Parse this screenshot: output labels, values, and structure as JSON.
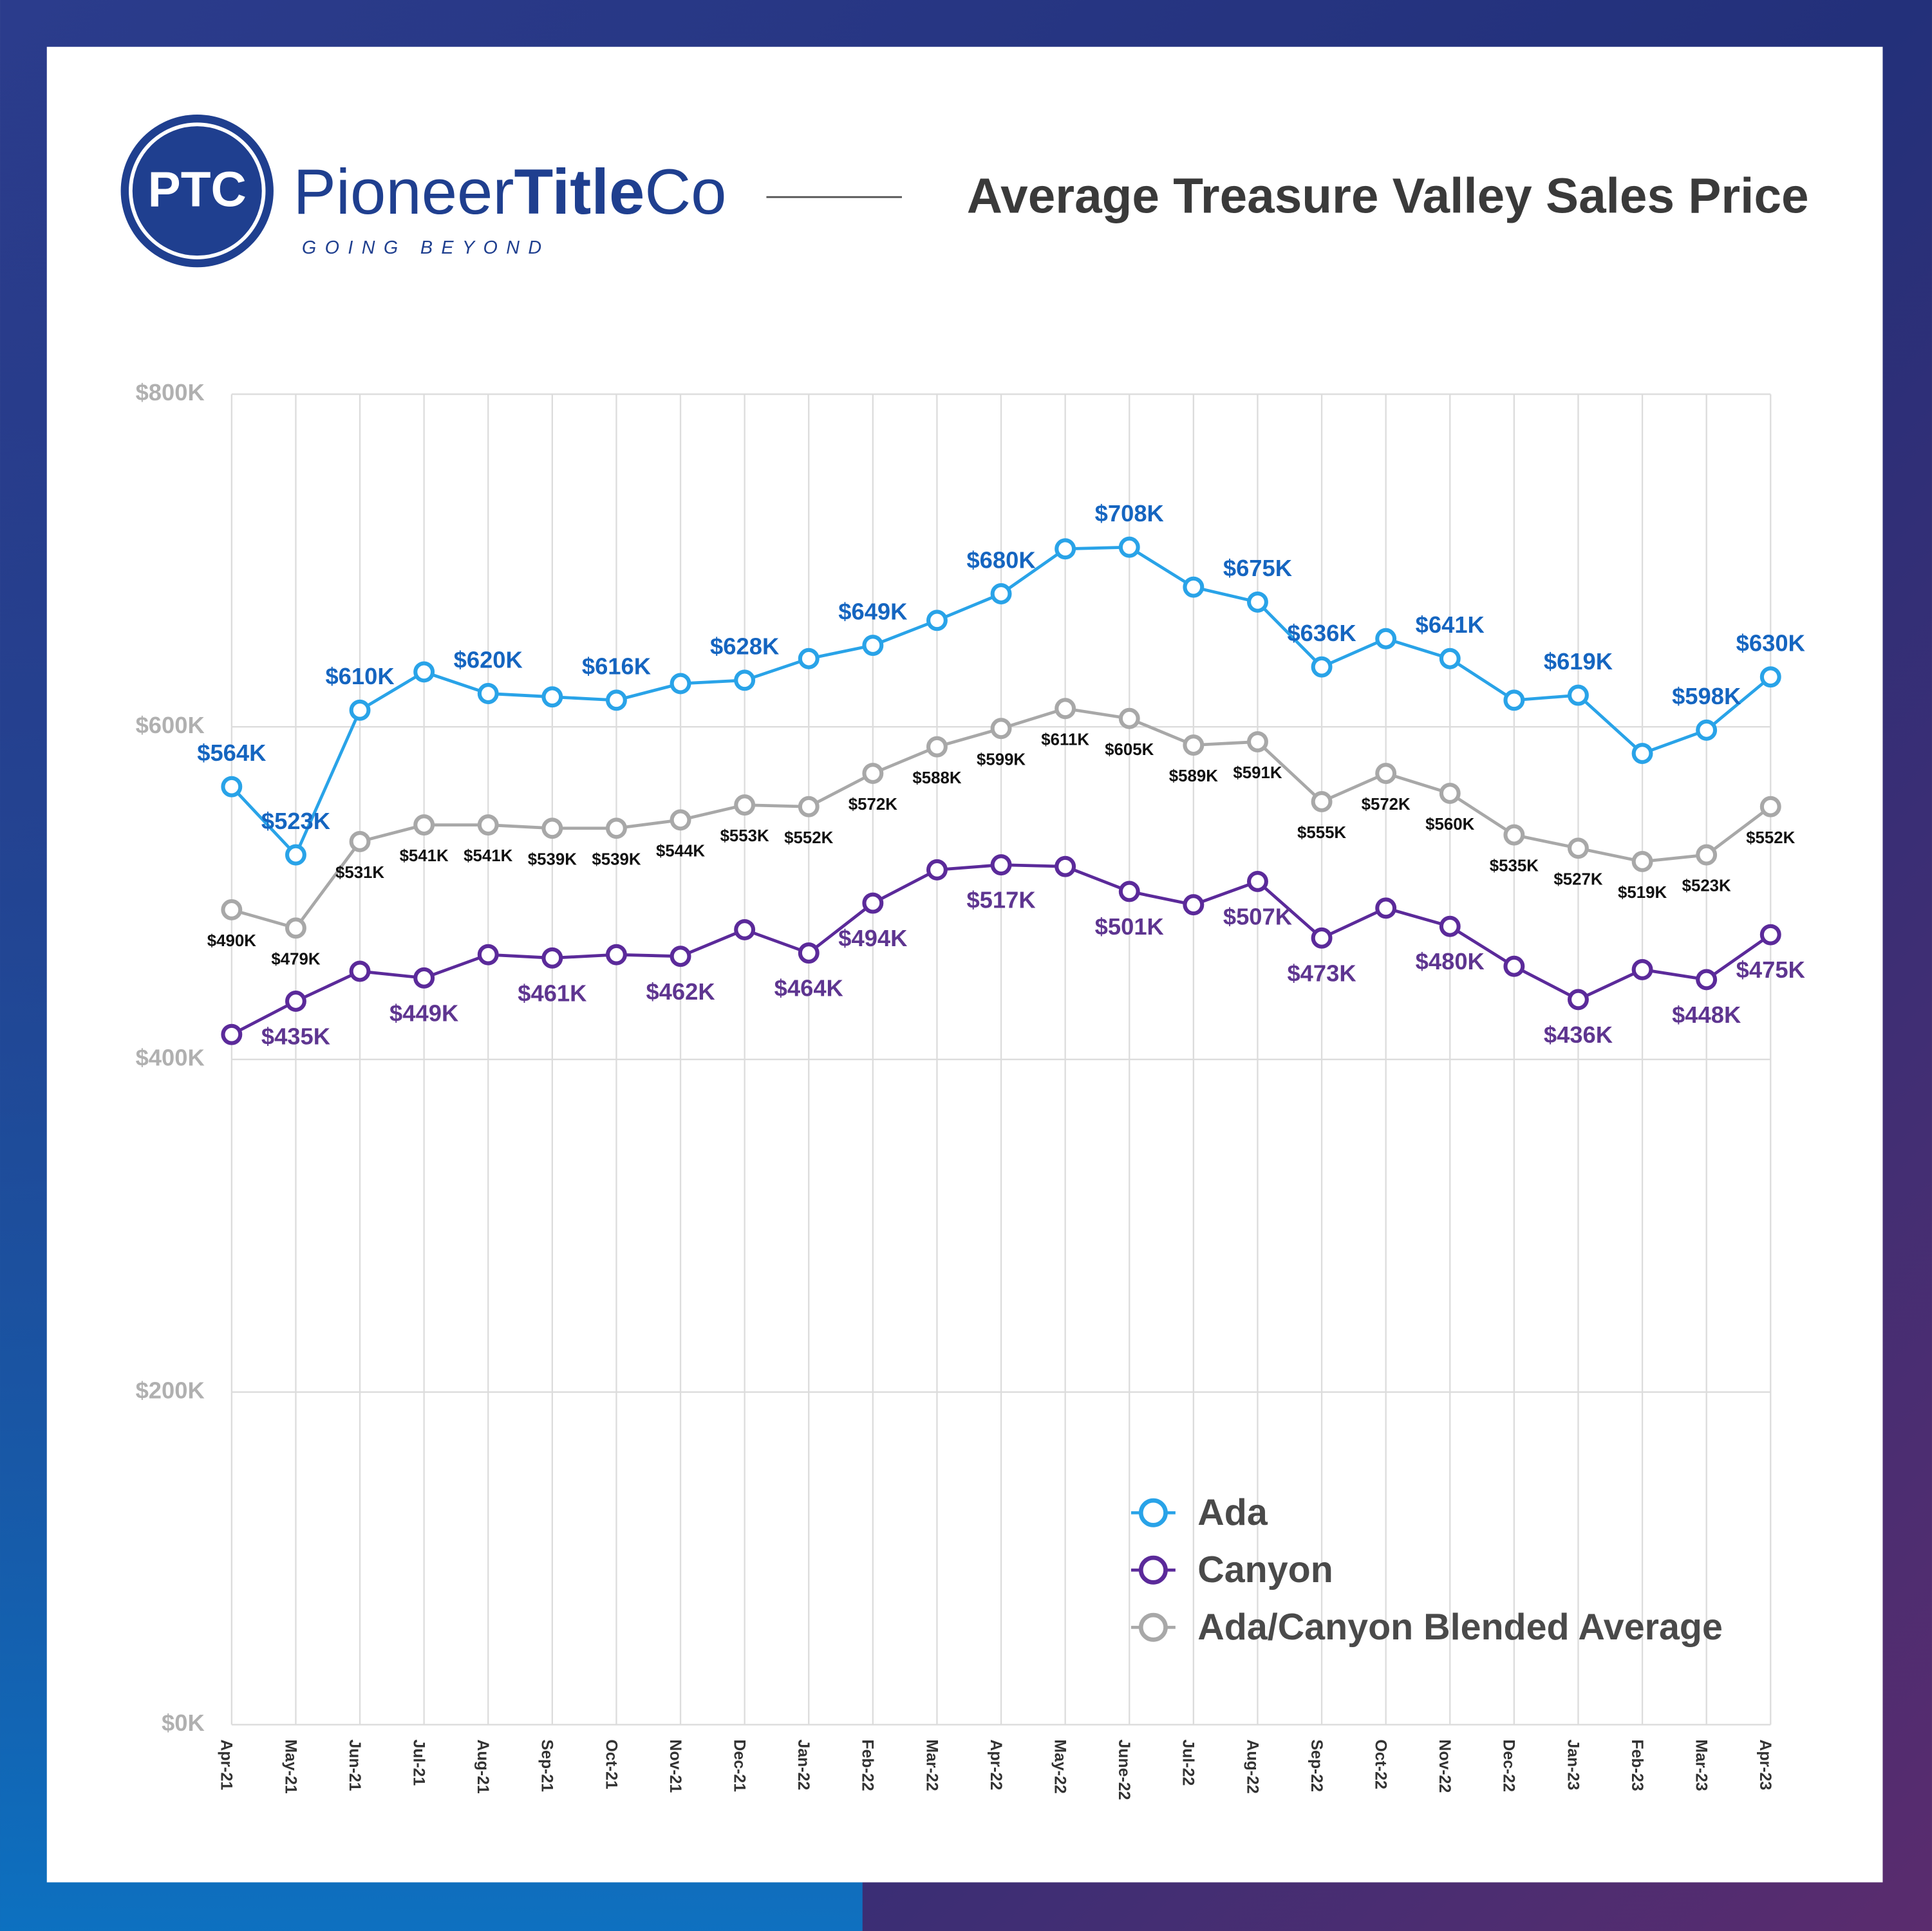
{
  "brand": {
    "mark": "PTC",
    "name_a": "Pioneer",
    "name_b": "Title",
    "name_c": "Co",
    "tagline": "GOING BEYOND"
  },
  "chart_data": {
    "type": "line",
    "title": "Average Treasure Valley Sales Price",
    "categories": [
      "Apr-21",
      "May-21",
      "Jun-21",
      "Jul-21",
      "Aug-21",
      "Sep-21",
      "Oct-21",
      "Nov-21",
      "Dec-21",
      "Jan-22",
      "Feb-22",
      "Mar-22",
      "Apr-22",
      "May-22",
      "June-22",
      "Jul-22",
      "Aug-22",
      "Sep-22",
      "Oct-22",
      "Nov-22",
      "Dec-22",
      "Jan-23",
      "Feb-23",
      "Mar-23",
      "Apr-23"
    ],
    "series": [
      {
        "name": "Ada",
        "color": "#29a3e8",
        "label_color": "#1565c0",
        "values": [
          564,
          523,
          610,
          633,
          620,
          618,
          616,
          626,
          628,
          641,
          649,
          664,
          680,
          707,
          708,
          684,
          675,
          636,
          653,
          641,
          616,
          619,
          584,
          598,
          630
        ],
        "value_labels": [
          "$564K",
          "$523K",
          "$610K",
          null,
          "$620K",
          null,
          "$616K",
          null,
          "$628K",
          null,
          "$649K",
          null,
          "$680K",
          null,
          "$708K",
          null,
          "$675K",
          "$636K",
          null,
          "$641K",
          null,
          "$619K",
          null,
          "$598K",
          "$630K"
        ]
      },
      {
        "name": "Canyon",
        "color": "#5b2a9a",
        "label_color": "#5e3590",
        "values": [
          415,
          435,
          453,
          449,
          463,
          461,
          463,
          462,
          478,
          464,
          494,
          514,
          517,
          516,
          501,
          493,
          507,
          473,
          491,
          480,
          456,
          436,
          454,
          448,
          475
        ],
        "value_labels": [
          null,
          "$435K",
          null,
          "$449K",
          null,
          "$461K",
          null,
          "$462K",
          null,
          "$464K",
          "$494K",
          null,
          "$517K",
          null,
          "$501K",
          null,
          "$507K",
          "$473K",
          null,
          "$480K",
          null,
          "$436K",
          null,
          "$448K",
          "$475K"
        ]
      },
      {
        "name": "Ada/Canyon Blended Average",
        "color": "#a8a8a8",
        "label_color": "#111111",
        "values": [
          490,
          479,
          531,
          541,
          541,
          539,
          539,
          544,
          553,
          552,
          572,
          588,
          599,
          611,
          605,
          589,
          591,
          555,
          572,
          560,
          535,
          527,
          519,
          523,
          552
        ],
        "value_labels": [
          "$490K",
          "$479K",
          "$531K",
          "$541K",
          "$541K",
          "$539K",
          "$539K",
          "$544K",
          "$553K",
          "$552K",
          "$572K",
          "$588K",
          "$599K",
          "$611K",
          "$605K",
          "$589K",
          "$591K",
          "$555K",
          "$572K",
          "$560K",
          "$535K",
          "$527K",
          "$519K",
          "$523K",
          "$552K"
        ]
      }
    ],
    "ylim": [
      0,
      800
    ],
    "yticks": [
      {
        "value": 0,
        "label": "$0K"
      },
      {
        "value": 200,
        "label": "$200K"
      },
      {
        "value": 400,
        "label": "$400K"
      },
      {
        "value": 600,
        "label": "$600K"
      },
      {
        "value": 800,
        "label": "$800K"
      }
    ],
    "grid": true,
    "legend": "bottom-right"
  }
}
